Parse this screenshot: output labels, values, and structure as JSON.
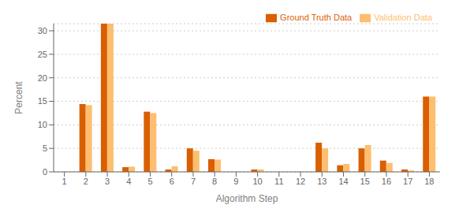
{
  "chart_data": {
    "type": "bar",
    "categories": [
      1,
      2,
      3,
      4,
      5,
      6,
      7,
      8,
      9,
      10,
      11,
      12,
      13,
      14,
      15,
      16,
      17,
      18
    ],
    "series": [
      {
        "name": "Ground Truth Data",
        "color": "#D95F02",
        "values": [
          0,
          14.4,
          31.5,
          1.0,
          12.8,
          0.5,
          5.0,
          2.7,
          0,
          0.5,
          0,
          0,
          6.2,
          1.4,
          5.0,
          2.4,
          0.5,
          16.0
        ]
      },
      {
        "name": "Validation Data",
        "color": "#FDBE6F",
        "values": [
          0,
          14.2,
          31.5,
          1.1,
          12.5,
          1.2,
          4.5,
          2.6,
          0,
          0.5,
          0,
          0,
          5.0,
          1.7,
          5.7,
          1.9,
          0.3,
          16.0
        ]
      }
    ],
    "xlabel": "Algorithm Step",
    "ylabel": "Percent",
    "ylim": [
      0,
      31.5
    ],
    "yticks": [
      0,
      5,
      10,
      15,
      20,
      25,
      30
    ],
    "grid": true,
    "legend": "upper right"
  }
}
